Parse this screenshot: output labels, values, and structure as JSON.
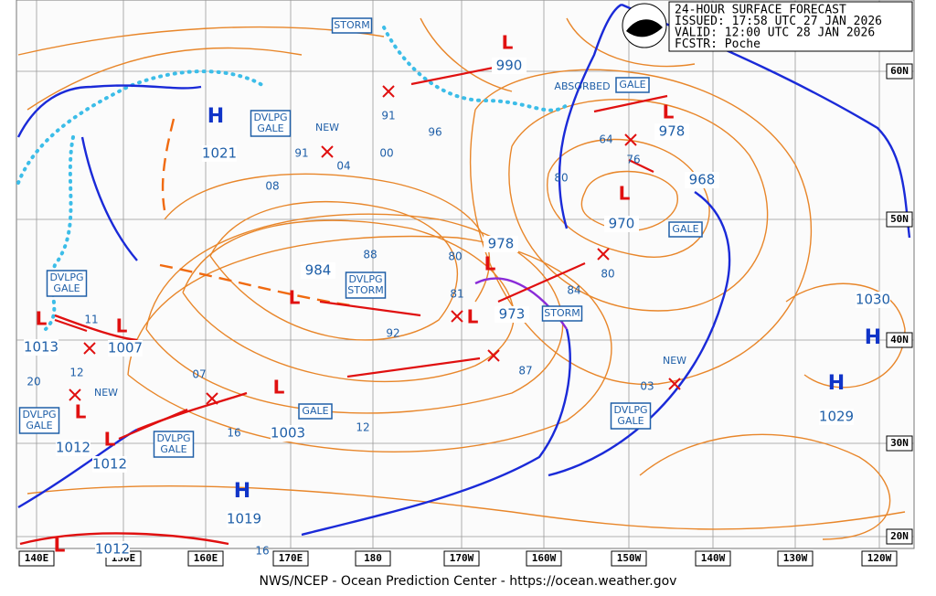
{
  "header": {
    "lines": [
      "24-HOUR SURFACE FORECAST",
      "ISSUED: 17:58 UTC 27 JAN 2026",
      "VALID:  12:00 UTC 28 JAN 2026",
      "FCSTR:  Poche"
    ]
  },
  "latitudes": [
    "60N",
    "50N",
    "40N",
    "30N",
    "20N"
  ],
  "longitudes": [
    "140E",
    "150E",
    "160E",
    "170E",
    "180",
    "170W",
    "160W",
    "150W",
    "140W",
    "130W",
    "120W"
  ],
  "highs": [
    "H",
    "H",
    "H",
    "H"
  ],
  "lows": [
    "L",
    "L",
    "L",
    "L",
    "L",
    "L",
    "L",
    "L",
    "L",
    "L",
    "L",
    "L"
  ],
  "pressure_labels": [
    "1021",
    "1019",
    "1030",
    "1029",
    "990",
    "978",
    "968",
    "970",
    "984",
    "978",
    "81",
    "973",
    "1013",
    "1007",
    "1003",
    "1012",
    "1012",
    "1012",
    "91",
    "91",
    "04",
    "00",
    "96",
    "08",
    "88",
    "80",
    "92",
    "84",
    "80",
    "76",
    "64",
    "80",
    "87",
    "03",
    "12",
    "20",
    "11",
    "07",
    "16",
    "12",
    "16"
  ],
  "warnings": [
    [
      "STORM"
    ],
    [
      "DVLPG",
      "GALE"
    ],
    [
      "NEW"
    ],
    [
      "ABSORBED"
    ],
    [
      "GALE"
    ],
    [
      "GALE"
    ],
    [
      "DVLPG",
      "STORM"
    ],
    [
      "STORM"
    ],
    [
      "GALE"
    ],
    [
      "DVLPG",
      "GALE"
    ],
    [
      "DVLPG",
      "GALE"
    ],
    [
      "DVLPG",
      "GALE"
    ],
    [
      "NEW"
    ],
    [
      "NEW"
    ],
    [
      "DVLPG",
      "GALE"
    ]
  ],
  "footer": "NWS/NCEP - Ocean Prediction Center - https://ocean.weather.gov"
}
